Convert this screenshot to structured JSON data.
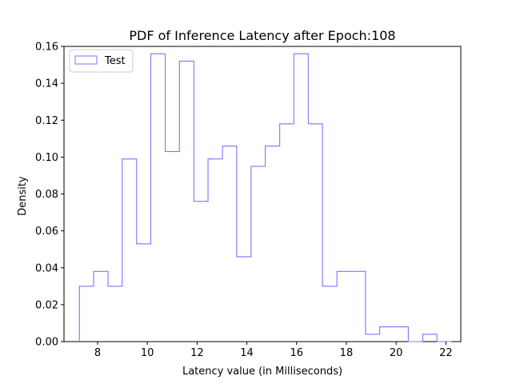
{
  "chart_data": {
    "type": "bar",
    "histtype": "step",
    "title": "PDF of Inference Latency after Epoch:108",
    "xlabel": "Latency value (in Milliseconds)",
    "ylabel": "Density",
    "xlim": [
      6.65,
      22.6
    ],
    "ylim": [
      0,
      0.16
    ],
    "xticks": [
      8,
      10,
      12,
      14,
      16,
      18,
      20,
      22
    ],
    "yticks": [
      0.0,
      0.02,
      0.04,
      0.06,
      0.08,
      0.1,
      0.12,
      0.14,
      0.16
    ],
    "ytick_labels": [
      "0.00",
      "0.02",
      "0.04",
      "0.06",
      "0.08",
      "0.10",
      "0.12",
      "0.14",
      "0.16"
    ],
    "grid": false,
    "legend_position": "upper-left",
    "series": [
      {
        "name": "Test",
        "color": "#0000ff",
        "bin_edges": [
          7.27,
          7.84,
          8.42,
          8.99,
          9.57,
          10.14,
          10.72,
          11.29,
          11.87,
          12.44,
          13.02,
          13.59,
          14.17,
          14.74,
          15.32,
          15.89,
          16.47,
          17.04,
          17.62,
          18.19,
          18.77,
          19.34,
          19.92,
          20.49,
          21.07,
          21.64,
          22.22
        ],
        "values": [
          0.03,
          0.038,
          0.03,
          0.099,
          0.053,
          0.156,
          0.103,
          0.152,
          0.076,
          0.099,
          0.106,
          0.046,
          0.095,
          0.106,
          0.118,
          0.156,
          0.118,
          0.03,
          0.038,
          0.038,
          0.004,
          0.008,
          0.008,
          0.0,
          0.004,
          0.0
        ]
      }
    ]
  }
}
